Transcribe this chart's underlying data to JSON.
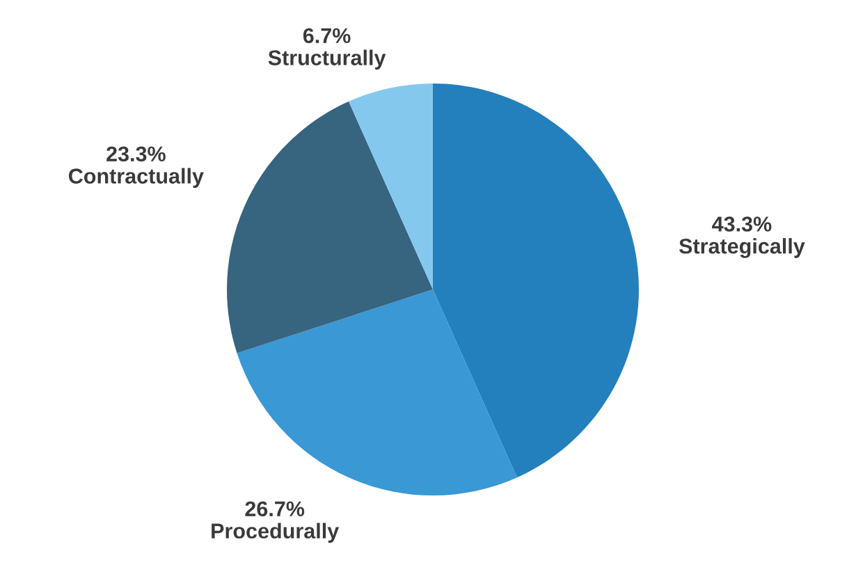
{
  "chart_data": {
    "type": "pie",
    "categories": [
      "Strategically",
      "Procedurally",
      "Contractually",
      "Structurally"
    ],
    "values": [
      43.3,
      26.7,
      23.3,
      6.7
    ],
    "value_labels": [
      "43.3%",
      "26.7%",
      "23.3%",
      "6.7%"
    ],
    "colors": [
      "#2380bd",
      "#3a98d4",
      "#37647f",
      "#85c8ee"
    ]
  }
}
